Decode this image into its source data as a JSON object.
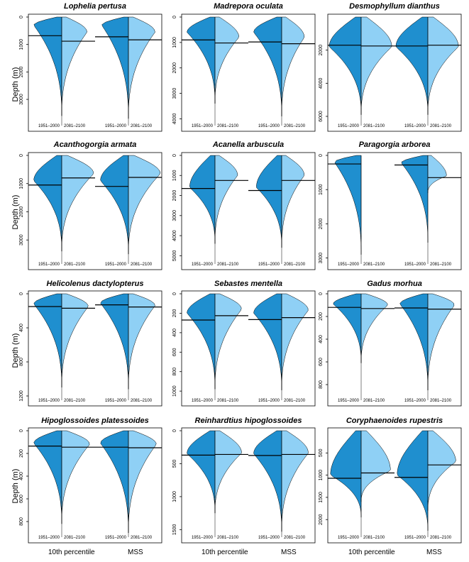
{
  "figure": {
    "ylabel": "Depth (m)",
    "xlabels": [
      "10th percentile",
      "MSS"
    ],
    "period_labels": [
      "1951–2000",
      "2081–2100"
    ],
    "colors": {
      "historical": "#1f8fcf",
      "future": "#8fd0f5",
      "outline": "#000000"
    }
  },
  "chart_data": [
    {
      "type": "violin",
      "title": "Lophelia pertusa",
      "yticks": [
        0,
        1000,
        2000,
        3000
      ],
      "ylim": [
        0,
        3800
      ],
      "y_reversed": true,
      "categories": [
        "10th percentile",
        "MSS"
      ],
      "groups": [
        {
          "name": "10th percentile",
          "historical": {
            "mean": 680,
            "max_depth": 3600,
            "peak_depth": 300,
            "width": 0.42
          },
          "future": {
            "mean": 880,
            "max_depth": 3600,
            "peak_depth": 550,
            "width": 0.38
          }
        },
        {
          "name": "MSS",
          "historical": {
            "mean": 720,
            "max_depth": 3700,
            "peak_depth": 300,
            "width": 0.4
          },
          "future": {
            "mean": 830,
            "max_depth": 3700,
            "peak_depth": 550,
            "width": 0.4
          }
        }
      ]
    },
    {
      "type": "violin",
      "title": "Madrepora oculata",
      "yticks": [
        0,
        1000,
        2000,
        3000,
        4000
      ],
      "ylim": [
        0,
        4100
      ],
      "y_reversed": true,
      "categories": [
        "10th percentile",
        "MSS"
      ],
      "groups": [
        {
          "name": "10th percentile",
          "historical": {
            "mean": 900,
            "max_depth": 3400,
            "peak_depth": 600,
            "width": 0.42
          },
          "future": {
            "mean": 1020,
            "max_depth": 3400,
            "peak_depth": 800,
            "width": 0.36
          }
        },
        {
          "name": "MSS",
          "historical": {
            "mean": 980,
            "max_depth": 3900,
            "peak_depth": 600,
            "width": 0.42
          },
          "future": {
            "mean": 1050,
            "max_depth": 3900,
            "peak_depth": 800,
            "width": 0.34
          }
        }
      ]
    },
    {
      "type": "violin",
      "title": "Desmophyllum dianthus",
      "yticks": [
        2000,
        4000,
        6000
      ],
      "ylim": [
        0,
        6300
      ],
      "y_reversed": true,
      "categories": [
        "10th percentile",
        "MSS"
      ],
      "groups": [
        {
          "name": "10th percentile",
          "historical": {
            "mean": 1700,
            "max_depth": 5900,
            "peak_depth": 1800,
            "width": 0.48
          },
          "future": {
            "mean": 1750,
            "max_depth": 5900,
            "peak_depth": 1800,
            "width": 0.46
          }
        },
        {
          "name": "MSS",
          "historical": {
            "mean": 1750,
            "max_depth": 5900,
            "peak_depth": 1800,
            "width": 0.48
          },
          "future": {
            "mean": 1700,
            "max_depth": 5900,
            "peak_depth": 1800,
            "width": 0.46
          }
        }
      ]
    },
    {
      "type": "violin",
      "title": "Acanthogorgia armata",
      "yticks": [
        0,
        1000,
        2000,
        3000
      ],
      "ylim": [
        0,
        3700
      ],
      "y_reversed": true,
      "categories": [
        "10th percentile",
        "MSS"
      ],
      "groups": [
        {
          "name": "10th percentile",
          "historical": {
            "mean": 1050,
            "max_depth": 3400,
            "peak_depth": 900,
            "width": 0.42
          },
          "future": {
            "mean": 800,
            "max_depth": 3400,
            "peak_depth": 650,
            "width": 0.48
          }
        },
        {
          "name": "MSS",
          "historical": {
            "mean": 1100,
            "max_depth": 3500,
            "peak_depth": 900,
            "width": 0.42
          },
          "future": {
            "mean": 780,
            "max_depth": 3500,
            "peak_depth": 650,
            "width": 0.48
          }
        }
      ]
    },
    {
      "type": "violin",
      "title": "Acanella arbuscula",
      "yticks": [
        0,
        1000,
        2000,
        3000,
        4000,
        5000
      ],
      "ylim": [
        0,
        5200
      ],
      "y_reversed": true,
      "categories": [
        "10th percentile",
        "MSS"
      ],
      "groups": [
        {
          "name": "10th percentile",
          "historical": {
            "mean": 1650,
            "max_depth": 4400,
            "peak_depth": 1600,
            "width": 0.38
          },
          "future": {
            "mean": 1250,
            "max_depth": 4400,
            "peak_depth": 1000,
            "width": 0.34
          }
        },
        {
          "name": "MSS",
          "historical": {
            "mean": 1750,
            "max_depth": 4600,
            "peak_depth": 1600,
            "width": 0.38
          },
          "future": {
            "mean": 1250,
            "max_depth": 4600,
            "peak_depth": 1000,
            "width": 0.34
          }
        }
      ]
    },
    {
      "type": "violin",
      "title": "Paragorgia arborea",
      "yticks": [
        0,
        1000,
        2000,
        3000
      ],
      "ylim": [
        0,
        3050
      ],
      "y_reversed": true,
      "categories": [
        "10th percentile",
        "MSS"
      ],
      "groups": [
        {
          "name": "10th percentile",
          "historical": {
            "mean": 250,
            "max_depth": 2900,
            "peak_depth": 200,
            "width": 0.4
          },
          "future": null
        },
        {
          "name": "MSS",
          "historical": {
            "mean": 280,
            "max_depth": 2550,
            "peak_depth": 220,
            "width": 0.4
          },
          "future": {
            "mean": 650,
            "max_depth": 1100,
            "peak_depth": 600,
            "width": 0.28
          }
        }
      ]
    },
    {
      "type": "violin",
      "title": "Helicolenus dactylopterus",
      "yticks": [
        0,
        400,
        800,
        1200
      ],
      "ylim": [
        0,
        1200
      ],
      "y_reversed": true,
      "categories": [
        "10th percentile",
        "MSS"
      ],
      "groups": [
        {
          "name": "10th percentile",
          "historical": {
            "mean": 150,
            "max_depth": 1100,
            "peak_depth": 120,
            "width": 0.42
          },
          "future": {
            "mean": 170,
            "max_depth": 1100,
            "peak_depth": 150,
            "width": 0.4
          }
        },
        {
          "name": "MSS",
          "historical": {
            "mean": 130,
            "max_depth": 1120,
            "peak_depth": 110,
            "width": 0.42
          },
          "future": {
            "mean": 155,
            "max_depth": 1120,
            "peak_depth": 140,
            "width": 0.4
          }
        }
      ]
    },
    {
      "type": "violin",
      "title": "Sebastes mentella",
      "yticks": [
        0,
        200,
        400,
        600,
        800,
        1000
      ],
      "ylim": [
        0,
        1050
      ],
      "y_reversed": true,
      "categories": [
        "10th percentile",
        "MSS"
      ],
      "groups": [
        {
          "name": "10th percentile",
          "historical": {
            "mean": 270,
            "max_depth": 980,
            "peak_depth": 200,
            "width": 0.42
          },
          "future": {
            "mean": 225,
            "max_depth": 980,
            "peak_depth": 160,
            "width": 0.4
          }
        },
        {
          "name": "MSS",
          "historical": {
            "mean": 265,
            "max_depth": 990,
            "peak_depth": 200,
            "width": 0.42
          },
          "future": {
            "mean": 245,
            "max_depth": 990,
            "peak_depth": 170,
            "width": 0.4
          }
        }
      ]
    },
    {
      "type": "violin",
      "title": "Gadus morhua",
      "yticks": [
        0,
        200,
        400,
        600,
        800
      ],
      "ylim": [
        0,
        900
      ],
      "y_reversed": true,
      "categories": [
        "10th percentile",
        "MSS"
      ],
      "groups": [
        {
          "name": "10th percentile",
          "historical": {
            "mean": 120,
            "max_depth": 610,
            "peak_depth": 90,
            "width": 0.42
          },
          "future": {
            "mean": 130,
            "max_depth": 610,
            "peak_depth": 100,
            "width": 0.4
          }
        },
        {
          "name": "MSS",
          "historical": {
            "mean": 125,
            "max_depth": 850,
            "peak_depth": 90,
            "width": 0.42
          },
          "future": {
            "mean": 135,
            "max_depth": 850,
            "peak_depth": 100,
            "width": 0.4
          }
        }
      ]
    },
    {
      "type": "violin",
      "title": "Hipoglossoides platessoides",
      "yticks": [
        0,
        200,
        400,
        600,
        800
      ],
      "ylim": [
        0,
        900
      ],
      "y_reversed": true,
      "categories": [
        "10th percentile",
        "MSS"
      ],
      "groups": [
        {
          "name": "10th percentile",
          "historical": {
            "mean": 135,
            "max_depth": 820,
            "peak_depth": 110,
            "width": 0.42
          },
          "future": {
            "mean": 145,
            "max_depth": 820,
            "peak_depth": 120,
            "width": 0.42
          }
        },
        {
          "name": "MSS",
          "historical": {
            "mean": 145,
            "max_depth": 900,
            "peak_depth": 110,
            "width": 0.42
          },
          "future": {
            "mean": 150,
            "max_depth": 900,
            "peak_depth": 120,
            "width": 0.42
          }
        }
      ]
    },
    {
      "type": "violin",
      "title": "Reinhardtius hipoglossoides",
      "yticks": [
        0,
        500,
        1000,
        1500
      ],
      "ylim": [
        0,
        1550
      ],
      "y_reversed": true,
      "categories": [
        "10th percentile",
        "MSS"
      ],
      "groups": [
        {
          "name": "10th percentile",
          "historical": {
            "mean": 370,
            "max_depth": 1250,
            "peak_depth": 350,
            "width": 0.42
          },
          "future": {
            "mean": 360,
            "max_depth": 1250,
            "peak_depth": 340,
            "width": 0.4
          }
        },
        {
          "name": "MSS",
          "historical": {
            "mean": 375,
            "max_depth": 1530,
            "peak_depth": 350,
            "width": 0.42
          },
          "future": {
            "mean": 360,
            "max_depth": 1530,
            "peak_depth": 340,
            "width": 0.4
          }
        }
      ]
    },
    {
      "type": "violin",
      "title": "Coryphaenoides rupestris",
      "yticks": [
        500,
        1000,
        1500,
        2000
      ],
      "ylim": [
        0,
        2300
      ],
      "y_reversed": true,
      "categories": [
        "10th percentile",
        "MSS"
      ],
      "groups": [
        {
          "name": "10th percentile",
          "historical": {
            "mean": 1070,
            "max_depth": 1950,
            "peak_depth": 1000,
            "width": 0.46
          },
          "future": {
            "mean": 950,
            "max_depth": 1600,
            "peak_depth": 900,
            "width": 0.44
          }
        },
        {
          "name": "MSS",
          "historical": {
            "mean": 1050,
            "max_depth": 2250,
            "peak_depth": 1000,
            "width": 0.46
          },
          "future": {
            "mean": 770,
            "max_depth": 1800,
            "peak_depth": 700,
            "width": 0.42
          }
        }
      ]
    }
  ]
}
